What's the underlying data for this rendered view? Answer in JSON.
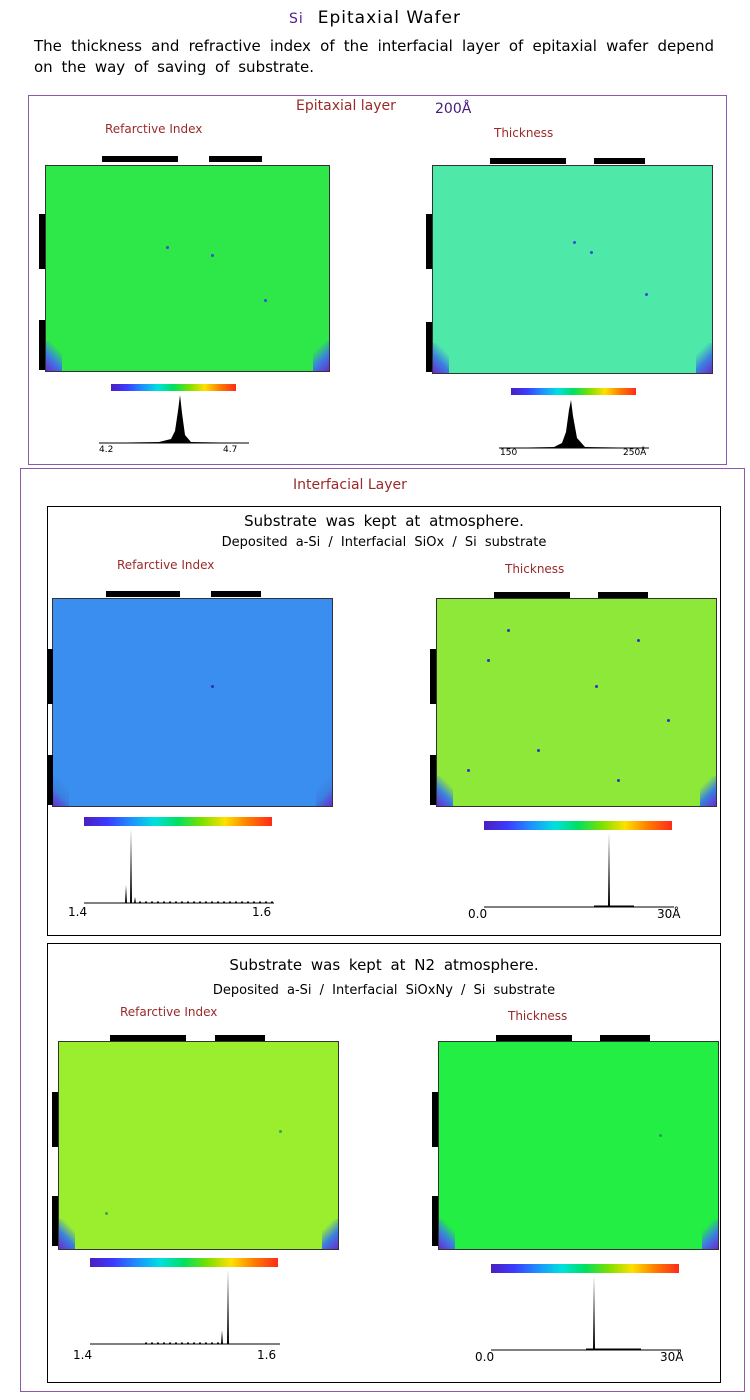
{
  "header": {
    "si": "Si",
    "title": "Epitaxial Wafer",
    "intro": "The thickness and refractive index of the interfacial layer of epitaxial wafer depend on the way of saving of substrate."
  },
  "epitaxial": {
    "heading": "Epitaxial layer",
    "thickness_value": "200Å",
    "ri_label": "Refarctive Index",
    "th_label": "Thickness",
    "ri_min": "4.2",
    "ri_max": "4.7",
    "th_min": "150",
    "th_max": "250Å",
    "colors": {
      "ri_map": "#2ee84a",
      "th_map": "#4ee8a8"
    }
  },
  "interfacial": {
    "heading": "Interfacial Layer",
    "panel_atm": {
      "line1": "Substrate was kept at atmosphere.",
      "line2": "Deposited  a-Si  /  Interfacial  SiOx  /  Si  substrate",
      "ri_label": "Refarctive Index",
      "th_label": "Thickness",
      "ri_min": "1.4",
      "ri_max": "1.6",
      "th_min": "0.0",
      "th_max": "30Å",
      "colors": {
        "ri_map": "#3a8ef0",
        "th_map": "#8ee83a"
      }
    },
    "panel_n2": {
      "line1": "Substrate was kept at N2 atmosphere.",
      "line2": "Deposited  a-Si  /  Interfacial  SiOxNy  /  Si  substrate",
      "ri_label": "Refarctive Index",
      "th_label": "Thickness",
      "ri_min": "1.4",
      "ri_max": "1.6",
      "th_min": "0.0",
      "th_max": "30Å",
      "colors": {
        "ri_map": "#9aee2e",
        "th_map": "#22ee44"
      }
    }
  },
  "map_ticks": [
    "500",
    "1500",
    "2500"
  ]
}
